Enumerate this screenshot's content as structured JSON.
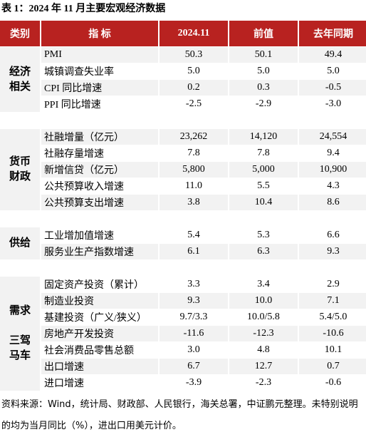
{
  "header": {
    "title": "表 1：2024 年 11 月主要宏观经济数据"
  },
  "table": {
    "columns": [
      "类别",
      "指 标",
      "2024.11",
      "前值",
      "去年同期"
    ],
    "groups": [
      {
        "category": [
          "经济",
          "相关"
        ],
        "rows": [
          [
            "PMI",
            "50.3",
            "50.1",
            "49.4"
          ],
          [
            "城镇调查失业率",
            "5.0",
            "5.0",
            "5.0"
          ],
          [
            "CPI 同比增速",
            "0.2",
            "0.3",
            "-0.5"
          ],
          [
            "PPI 同比增速",
            "-2.5",
            "-2.9",
            "-3.0"
          ]
        ]
      },
      {
        "category": [
          "货币",
          "财政"
        ],
        "rows": [
          [
            "社融增量（亿元）",
            "23,262",
            "14,120",
            "24,554"
          ],
          [
            "社融存量增速",
            "7.8",
            "7.8",
            "9.4"
          ],
          [
            "新增信贷（亿元）",
            "5,800",
            "5,000",
            "10,900"
          ],
          [
            "公共预算收入增速",
            "11.0",
            "5.5",
            "4.3"
          ],
          [
            "公共预算支出增速",
            "3.8",
            "10.4",
            "8.6"
          ]
        ]
      },
      {
        "category": [
          "供给"
        ],
        "rows": [
          [
            "工业增加值增速",
            "5.4",
            "5.3",
            "6.6"
          ],
          [
            "服务业生产指数增速",
            "6.1",
            "6.3",
            "9.3"
          ]
        ]
      },
      {
        "category": [
          "需求",
          "三驾",
          "马车"
        ],
        "rows": [
          [
            "固定资产投资（累计）",
            "3.3",
            "3.4",
            "2.9"
          ],
          [
            "制造业投资",
            "9.3",
            "10.0",
            "7.1"
          ],
          [
            "基建投资（广义/狭义）",
            "9.7/3.3",
            "10.0/5.8",
            "5.4/5.0"
          ],
          [
            "房地产开发投资",
            "-11.6",
            "-12.3",
            "-10.6"
          ],
          [
            "社会消费品零售总额",
            "3.0",
            "4.8",
            "10.1"
          ],
          [
            "出口增速",
            "6.7",
            "12.7",
            "0.7"
          ],
          [
            "进口增速",
            "-3.9",
            "-2.3",
            "-0.6"
          ]
        ]
      }
    ]
  },
  "footer": {
    "note": "资料来源：Wind，统计局、财政部、人民银行，海关总署，中证鹏元整理。未特别说明的均为当月同比（%），进出口用美元计价。"
  }
}
